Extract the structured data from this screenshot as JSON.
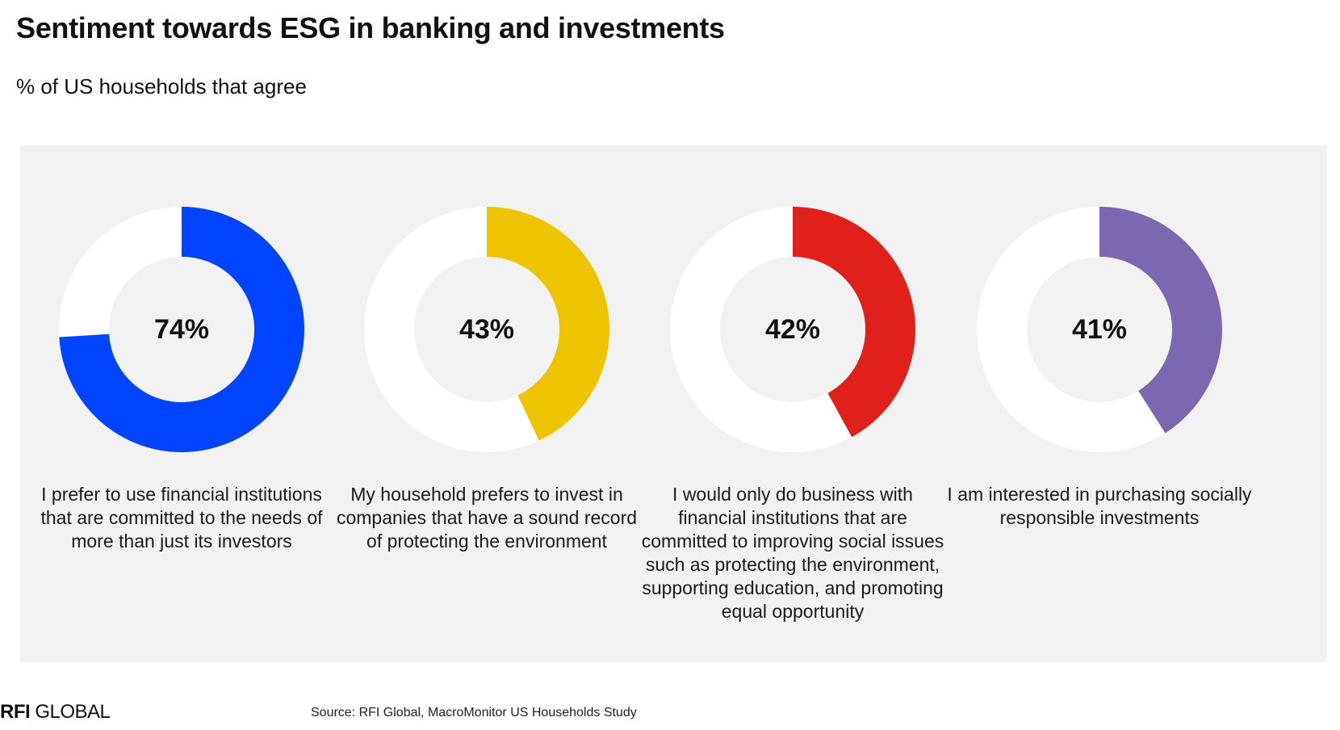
{
  "title": "Sentiment towards ESG in banking and investments",
  "subtitle": "% of US households that agree",
  "chart_data": {
    "type": "donut",
    "unit": "%",
    "track_color": "#ffffff",
    "panel_color": "#f2f2f2",
    "items": [
      {
        "value": 74,
        "display": "74%",
        "color": "#0044ff",
        "label": "I prefer to use financial institutions that are committed to the needs of more than just its investors"
      },
      {
        "value": 43,
        "display": "43%",
        "color": "#eec400",
        "label": "My household prefers to invest in companies that have a sound record of protecting the environment"
      },
      {
        "value": 42,
        "display": "42%",
        "color": "#e0201b",
        "label": "I would only do business with financial institutions that are committed to improving social issues such as protecting the environment, supporting education, and promoting equal opportunity"
      },
      {
        "value": 41,
        "display": "41%",
        "color": "#7b68b0",
        "label": "I am interested in purchasing socially responsible investments"
      }
    ]
  },
  "footer": {
    "logo_bold": "RFI",
    "logo_regular": " GLOBAL",
    "source": "Source: RFI Global, MacroMonitor US Households Study"
  }
}
